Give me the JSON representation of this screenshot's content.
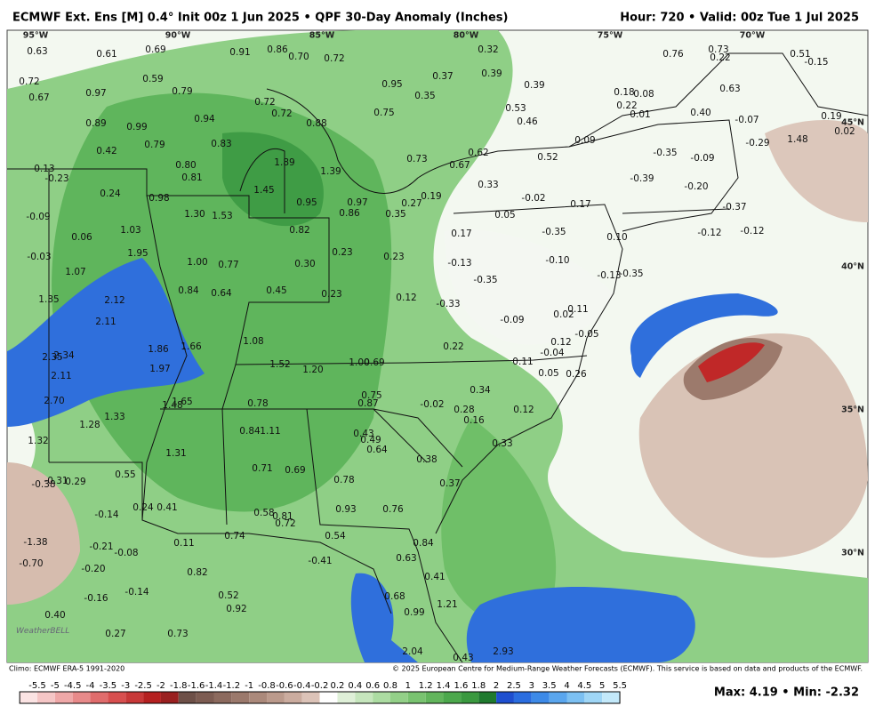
{
  "header": {
    "title": "ECMWF Ext. Ens [M] 0.4° Init 00z 1 Jun 2025 • QPF 30-Day Anomaly (Inches)",
    "valid": "Hour: 720 • Valid: 00z Tue 1 Jul 2025"
  },
  "map": {
    "lon_labels": [
      "95°W",
      "90°W",
      "85°W",
      "80°W",
      "75°W",
      "70°W"
    ],
    "lat_labels": [
      "45°N",
      "40°N",
      "35°N",
      "30°N"
    ],
    "values": [
      "0.63",
      "0.61",
      "0.69",
      "0.91",
      "0.86",
      "0.70",
      "0.72",
      "0.32",
      "0.76",
      "0.73",
      "0.22",
      "0.51",
      "-0.15",
      "0.72",
      "0.59",
      "0.95",
      "0.37",
      "0.39",
      "0.39",
      "0.67",
      "0.97",
      "0.79",
      "0.35",
      "0.18",
      "0.08",
      "0.63",
      "0.72",
      "0.72",
      "0.75",
      "0.53",
      "0.22",
      "0.01",
      "0.40",
      "-0.07",
      "0.19",
      "0.89",
      "0.99",
      "0.94",
      "0.88",
      "0.46",
      "0.02",
      "0.42",
      "0.79",
      "0.83",
      "0.09",
      "-0.29",
      "1.48",
      "0.62",
      "0.73",
      "0.52",
      "-0.35",
      "-0.09",
      "-0.13",
      "0.80",
      "1.89",
      "1.39",
      "0.67",
      "-0.23",
      "0.81",
      "-0.39",
      "-0.20",
      "0.24",
      "0.98",
      "1.45",
      "0.95",
      "0.97",
      "0.19",
      "0.27",
      "0.33",
      "-0.02",
      "0.17",
      "-0.37",
      "1.30",
      "1.53",
      "0.86",
      "0.35",
      "0.05",
      "-0.09",
      "1.03",
      "0.82",
      "-0.35",
      "0.10",
      "-0.12",
      "-0.12",
      "0.06",
      "0.17",
      "-0.03",
      "1.95",
      "0.23",
      "0.23",
      "-0.13",
      "-0.10",
      "1.00",
      "0.77",
      "0.30",
      "1.07",
      "-0.13",
      "-0.35",
      "-0.35",
      "1.35",
      "2.12",
      "0.84",
      "0.64",
      "0.45",
      "0.23",
      "0.12",
      "-0.33",
      "2.11",
      "-0.09",
      "0.02",
      "-0.05",
      "0.11",
      "1.08",
      "1.86",
      "1.66",
      "0.22",
      "-0.04",
      "0.12",
      "2.35",
      "2.34",
      "1.52",
      "1.20",
      "1.00",
      "0.69",
      "0.11",
      "1.97",
      "2.11",
      "0.05",
      "0.26",
      "0.75",
      "0.34",
      "2.70",
      "1.48",
      "1.65",
      "0.78",
      "0.87",
      "-0.02",
      "0.28",
      "0.12",
      "0.16",
      "1.33",
      "1.28",
      "0.84",
      "1.11",
      "0.43",
      "0.49",
      "0.33",
      "1.32",
      "0.64",
      "1.31",
      "0.38",
      "0.55",
      "0.71",
      "0.69",
      "-0.38",
      "-0.31",
      "0.29",
      "0.78",
      "0.37",
      "0.24",
      "0.41",
      "0.58",
      "0.81",
      "0.93",
      "0.76",
      "-0.14",
      "0.72",
      "-1.38",
      "-0.21",
      "0.11",
      "0.74",
      "0.54",
      "0.84",
      "-0.08",
      "-0.70",
      "-0.20",
      "0.82",
      "-0.41",
      "0.63",
      "0.41",
      "-0.16",
      "-0.14",
      "0.52",
      "0.68",
      "0.92",
      "0.99",
      "1.21",
      "0.40",
      "0.27",
      "0.73",
      "2.04",
      "0.43",
      "2.93"
    ]
  },
  "logo": "WeatherBELL",
  "footer": {
    "climo": "Climo: ECMWF ERA-5 1991-2020",
    "copyright": "© 2025 European Centre for Medium-Range Weather Forecasts (ECMWF). This service is based on data and products of the ECMWF.",
    "extremes": "Max: 4.19 • Min: -2.32"
  },
  "legend": {
    "labels": [
      "-5.5",
      "-5",
      "-4.5",
      "-4",
      "-3.5",
      "-3",
      "-2.5",
      "-2",
      "-1.8",
      "-1.6",
      "-1.4",
      "-1.2",
      "-1",
      "-0.8",
      "-0.6",
      "-0.4",
      "-0.2",
      "0.2",
      "0.4",
      "0.6",
      "0.8",
      "1",
      "1.2",
      "1.4",
      "1.6",
      "1.8",
      "2",
      "2.5",
      "3",
      "3.5",
      "4",
      "4.5",
      "5",
      "5.5"
    ]
  }
}
